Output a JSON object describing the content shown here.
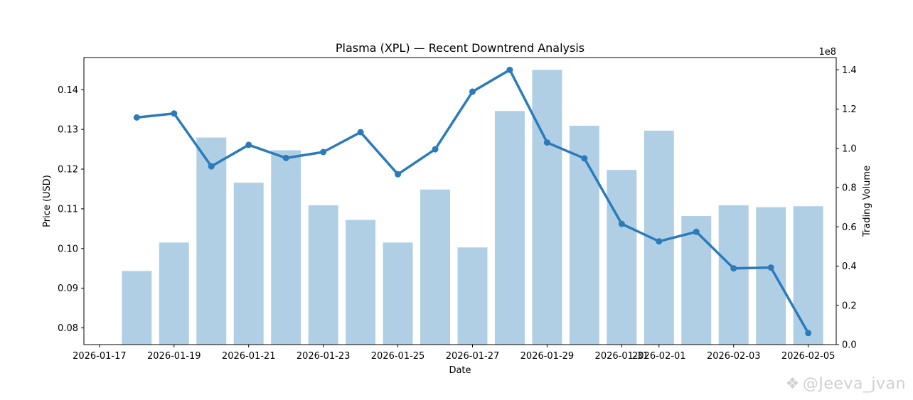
{
  "chart_data": {
    "type": "bar",
    "title": "Plasma (XPL) — Recent Downtrend Analysis",
    "xlabel": "Date",
    "ylabel": "Price (USD)",
    "y2label": "Trading Volume",
    "y2_offset_label": "1e8",
    "grid": false,
    "x_tick_labels": [
      "2026-01-17",
      "2026-01-19",
      "2026-01-21",
      "2026-01-23",
      "2026-01-25",
      "2026-01-27",
      "2026-01-29",
      "2026-01-31",
      "2026-02-01",
      "2026-02-03",
      "2026-02-05"
    ],
    "y_ticks": [
      0.08,
      0.09,
      0.1,
      0.11,
      0.12,
      0.13,
      0.14
    ],
    "y_tick_labels": [
      "0.08",
      "0.09",
      "0.10",
      "0.11",
      "0.12",
      "0.13",
      "0.14"
    ],
    "y2_ticks": [
      0.0,
      0.2,
      0.4,
      0.6,
      0.8,
      1.0,
      1.2,
      1.4
    ],
    "y2_tick_labels": [
      "0.0",
      "0.2",
      "0.4",
      "0.6",
      "0.8",
      "1.0",
      "1.2",
      "1.4"
    ],
    "dates": [
      "2026-01-18",
      "2026-01-19",
      "2026-01-20",
      "2026-01-21",
      "2026-01-22",
      "2026-01-23",
      "2026-01-24",
      "2026-01-25",
      "2026-01-26",
      "2026-01-27",
      "2026-01-28",
      "2026-01-29",
      "2026-01-30",
      "2026-01-31",
      "2026-02-01",
      "2026-02-02",
      "2026-02-03",
      "2026-02-04",
      "2026-02-05"
    ],
    "series": [
      {
        "type": "bar",
        "axis": "right",
        "color": "#b0cfe5",
        "values": [
          0.375,
          0.52,
          1.055,
          0.825,
          0.99,
          0.71,
          0.635,
          0.52,
          0.79,
          0.495,
          1.19,
          1.4,
          1.115,
          0.89,
          1.09,
          0.655,
          0.71,
          0.7,
          0.705
        ]
      },
      {
        "type": "line",
        "axis": "left",
        "color": "#2b7bba",
        "values": [
          0.133,
          0.134,
          0.1207,
          0.1261,
          0.1228,
          0.1243,
          0.1293,
          0.1187,
          0.125,
          0.1395,
          0.145,
          0.1267,
          0.1227,
          0.1062,
          0.1018,
          0.1042,
          0.095,
          0.0952,
          0.0787
        ]
      }
    ],
    "xlim": [
      "2026-01-16T14:00",
      "2026-02-05T18:00"
    ],
    "ylim": [
      0.0758,
      0.1481
    ],
    "y2lim": [
      0.0,
      1.4625
    ]
  },
  "watermark": "@Jeeva_jvan",
  "watermark_icon": "diamond-logo-icon"
}
